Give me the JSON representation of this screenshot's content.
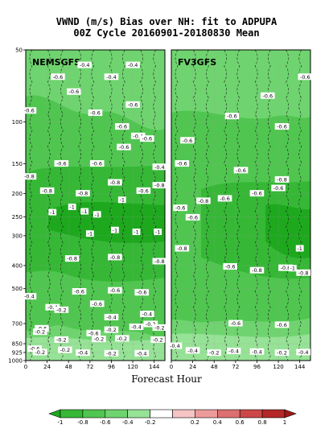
{
  "chart_data": {
    "type": "heatmap",
    "title": "VWND (m/s) Bias over NH: fit to ADPUPA",
    "subtitle": "00Z Cycle 20160901-20180830 Mean",
    "xlabel": "Forecast Hour",
    "ylabel": "",
    "x_ticks": [
      0,
      24,
      48,
      72,
      96,
      120,
      144
    ],
    "xlim": [
      0,
      156
    ],
    "y_ticks": [
      50,
      100,
      150,
      200,
      250,
      300,
      400,
      500,
      700,
      850,
      925,
      1000
    ],
    "y_scale": "log-pressure",
    "panels": [
      {
        "name": "NEMSGFS",
        "contour_labels": [
          {
            "x": 66,
            "p": 58,
            "v": "-0.4"
          },
          {
            "x": 120,
            "p": 58,
            "v": "-0.4"
          },
          {
            "x": 36,
            "p": 65,
            "v": "-0.6"
          },
          {
            "x": 96,
            "p": 65,
            "v": "-0.4"
          },
          {
            "x": 54,
            "p": 75,
            "v": "-0.6"
          },
          {
            "x": 4,
            "p": 90,
            "v": "-0.6"
          },
          {
            "x": 78,
            "p": 92,
            "v": "-0.6"
          },
          {
            "x": 120,
            "p": 85,
            "v": "-0.6"
          },
          {
            "x": 108,
            "p": 105,
            "v": "-0.6"
          },
          {
            "x": 126,
            "p": 115,
            "v": "-0.4"
          },
          {
            "x": 136,
            "p": 118,
            "v": "-0.6"
          },
          {
            "x": 40,
            "p": 150,
            "v": "-0.6"
          },
          {
            "x": 80,
            "p": 150,
            "v": "-0.6"
          },
          {
            "x": 110,
            "p": 128,
            "v": "-0.6"
          },
          {
            "x": 150,
            "p": 155,
            "v": "-0.4"
          },
          {
            "x": 4,
            "p": 170,
            "v": "-0.8"
          },
          {
            "x": 24,
            "p": 195,
            "v": "-0.8"
          },
          {
            "x": 64,
            "p": 200,
            "v": "-0.8"
          },
          {
            "x": 100,
            "p": 180,
            "v": "-0.8"
          },
          {
            "x": 132,
            "p": 195,
            "v": "-0.6"
          },
          {
            "x": 150,
            "p": 185,
            "v": "-0.8"
          },
          {
            "x": 30,
            "p": 240,
            "v": "-1"
          },
          {
            "x": 52,
            "p": 228,
            "v": "-1"
          },
          {
            "x": 66,
            "p": 238,
            "v": "-1"
          },
          {
            "x": 80,
            "p": 245,
            "v": "-1"
          },
          {
            "x": 108,
            "p": 213,
            "v": "-1"
          },
          {
            "x": 72,
            "p": 295,
            "v": "-1"
          },
          {
            "x": 100,
            "p": 285,
            "v": "-1"
          },
          {
            "x": 124,
            "p": 290,
            "v": "-1"
          },
          {
            "x": 148,
            "p": 290,
            "v": "-1"
          },
          {
            "x": 52,
            "p": 375,
            "v": "-0.8"
          },
          {
            "x": 100,
            "p": 370,
            "v": "-0.8"
          },
          {
            "x": 150,
            "p": 385,
            "v": "-0.8"
          },
          {
            "x": 60,
            "p": 515,
            "v": "-0.6"
          },
          {
            "x": 100,
            "p": 510,
            "v": "-0.6"
          },
          {
            "x": 130,
            "p": 520,
            "v": "-0.6"
          },
          {
            "x": 4,
            "p": 540,
            "v": "-0.4"
          },
          {
            "x": 30,
            "p": 600,
            "v": "-0.4"
          },
          {
            "x": 40,
            "p": 615,
            "v": "-0.2"
          },
          {
            "x": 80,
            "p": 580,
            "v": "-0.6"
          },
          {
            "x": 96,
            "p": 660,
            "v": "-0.4"
          },
          {
            "x": 136,
            "p": 640,
            "v": "-0.4"
          },
          {
            "x": 140,
            "p": 705,
            "v": "-0.2"
          },
          {
            "x": 18,
            "p": 735,
            "v": "-0.6"
          },
          {
            "x": 16,
            "p": 760,
            "v": "-0.2"
          },
          {
            "x": 76,
            "p": 770,
            "v": "-0.6"
          },
          {
            "x": 96,
            "p": 745,
            "v": "-0.2"
          },
          {
            "x": 124,
            "p": 725,
            "v": "-0.4"
          },
          {
            "x": 150,
            "p": 730,
            "v": "-0.2"
          },
          {
            "x": 40,
            "p": 820,
            "v": "-0.2"
          },
          {
            "x": 82,
            "p": 815,
            "v": "-0.2"
          },
          {
            "x": 108,
            "p": 810,
            "v": "-0.2"
          },
          {
            "x": 148,
            "p": 820,
            "v": "-0.2"
          },
          {
            "x": 10,
            "p": 895,
            "v": "-0.6"
          },
          {
            "x": 16,
            "p": 925,
            "v": "-0.2"
          },
          {
            "x": 44,
            "p": 905,
            "v": "-0.2"
          },
          {
            "x": 64,
            "p": 930,
            "v": "-0.4"
          },
          {
            "x": 96,
            "p": 935,
            "v": "-0.2"
          },
          {
            "x": 130,
            "p": 935,
            "v": "-0.4"
          }
        ]
      },
      {
        "name": "FV3GFS",
        "contour_labels": [
          {
            "x": 150,
            "p": 65,
            "v": "-0.6"
          },
          {
            "x": 108,
            "p": 78,
            "v": "-0.6"
          },
          {
            "x": 68,
            "p": 95,
            "v": "-0.6"
          },
          {
            "x": 124,
            "p": 105,
            "v": "-0.6"
          },
          {
            "x": 18,
            "p": 120,
            "v": "-0.6"
          },
          {
            "x": 12,
            "p": 150,
            "v": "-0.6"
          },
          {
            "x": 78,
            "p": 160,
            "v": "-0.6"
          },
          {
            "x": 124,
            "p": 175,
            "v": "-0.8"
          },
          {
            "x": 120,
            "p": 190,
            "v": "-0.6"
          },
          {
            "x": 10,
            "p": 230,
            "v": "-0.6"
          },
          {
            "x": 60,
            "p": 210,
            "v": "-0.6"
          },
          {
            "x": 96,
            "p": 200,
            "v": "-0.6"
          },
          {
            "x": 24,
            "p": 252,
            "v": "-0.6"
          },
          {
            "x": 36,
            "p": 215,
            "v": "-0.8"
          },
          {
            "x": 144,
            "p": 340,
            "v": "-1"
          },
          {
            "x": 12,
            "p": 340,
            "v": "-0.8"
          },
          {
            "x": 96,
            "p": 420,
            "v": "-0.8"
          },
          {
            "x": 128,
            "p": 410,
            "v": "-0.8"
          },
          {
            "x": 136,
            "p": 412,
            "v": "-1"
          },
          {
            "x": 148,
            "p": 430,
            "v": "-0.8"
          },
          {
            "x": 66,
            "p": 405,
            "v": "-0.6"
          },
          {
            "x": 72,
            "p": 700,
            "v": "-0.6"
          },
          {
            "x": 124,
            "p": 710,
            "v": "-0.6"
          },
          {
            "x": 4,
            "p": 870,
            "v": "-0.4"
          },
          {
            "x": 24,
            "p": 910,
            "v": "-0.4"
          },
          {
            "x": 48,
            "p": 930,
            "v": "-0.2"
          },
          {
            "x": 70,
            "p": 915,
            "v": "-0.4"
          },
          {
            "x": 96,
            "p": 920,
            "v": "-0.4"
          },
          {
            "x": 124,
            "p": 930,
            "v": "-0.2"
          },
          {
            "x": 148,
            "p": 925,
            "v": "-0.4"
          }
        ]
      }
    ],
    "colorbar": {
      "levels": [
        -1,
        -0.8,
        -0.6,
        -0.4,
        -0.2,
        0.2,
        0.4,
        0.6,
        0.8,
        1
      ],
      "labels": [
        "-1",
        "-0.8",
        "-0.6",
        "-0.4",
        "-0.2",
        "0.2",
        "0.4",
        "0.6",
        "0.8",
        "1"
      ],
      "colors": [
        "#1ea81e",
        "#36b836",
        "#50c650",
        "#6fd46f",
        "#96e296",
        "#ffffff",
        "#f6c4c4",
        "#ec9a9a",
        "#dd7070",
        "#cc4848",
        "#b52828",
        "#a01818"
      ]
    }
  }
}
